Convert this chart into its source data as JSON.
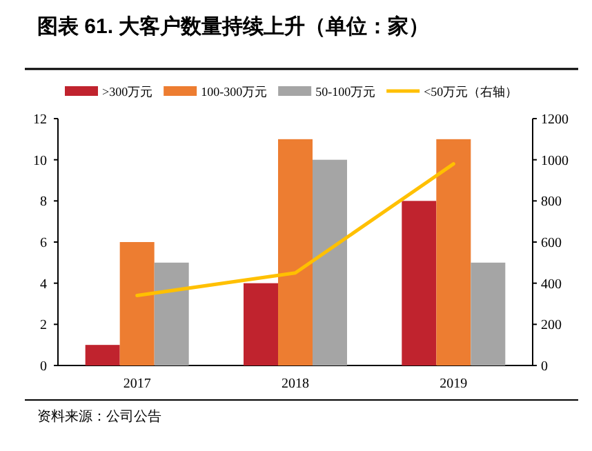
{
  "chart_data": {
    "type": "bar",
    "title": "图表 61. 大客户数量持续上升（单位：家）",
    "categories": [
      "2017",
      "2018",
      "2019"
    ],
    "series": [
      {
        "name": ">300万元",
        "color": "#c0232e",
        "values": [
          1,
          4,
          8
        ]
      },
      {
        "name": "100-300万元",
        "color": "#ed7d31",
        "values": [
          6,
          11,
          11
        ]
      },
      {
        "name": "50-100万元",
        "color": "#a5a5a5",
        "values": [
          5,
          10,
          5
        ]
      },
      {
        "name": "<50万元（右轴）",
        "type": "line",
        "axis": "y2",
        "color": "#ffc000",
        "values": [
          340,
          450,
          980
        ]
      }
    ],
    "ylim": [
      0,
      12
    ],
    "yticks": [
      0,
      2,
      4,
      6,
      8,
      10,
      12
    ],
    "y2lim": [
      0,
      1200
    ],
    "y2ticks": [
      0,
      200,
      400,
      600,
      800,
      1000,
      1200
    ],
    "legend": "top",
    "grid": false,
    "annotations": [
      "资料来源：公司公告"
    ]
  }
}
